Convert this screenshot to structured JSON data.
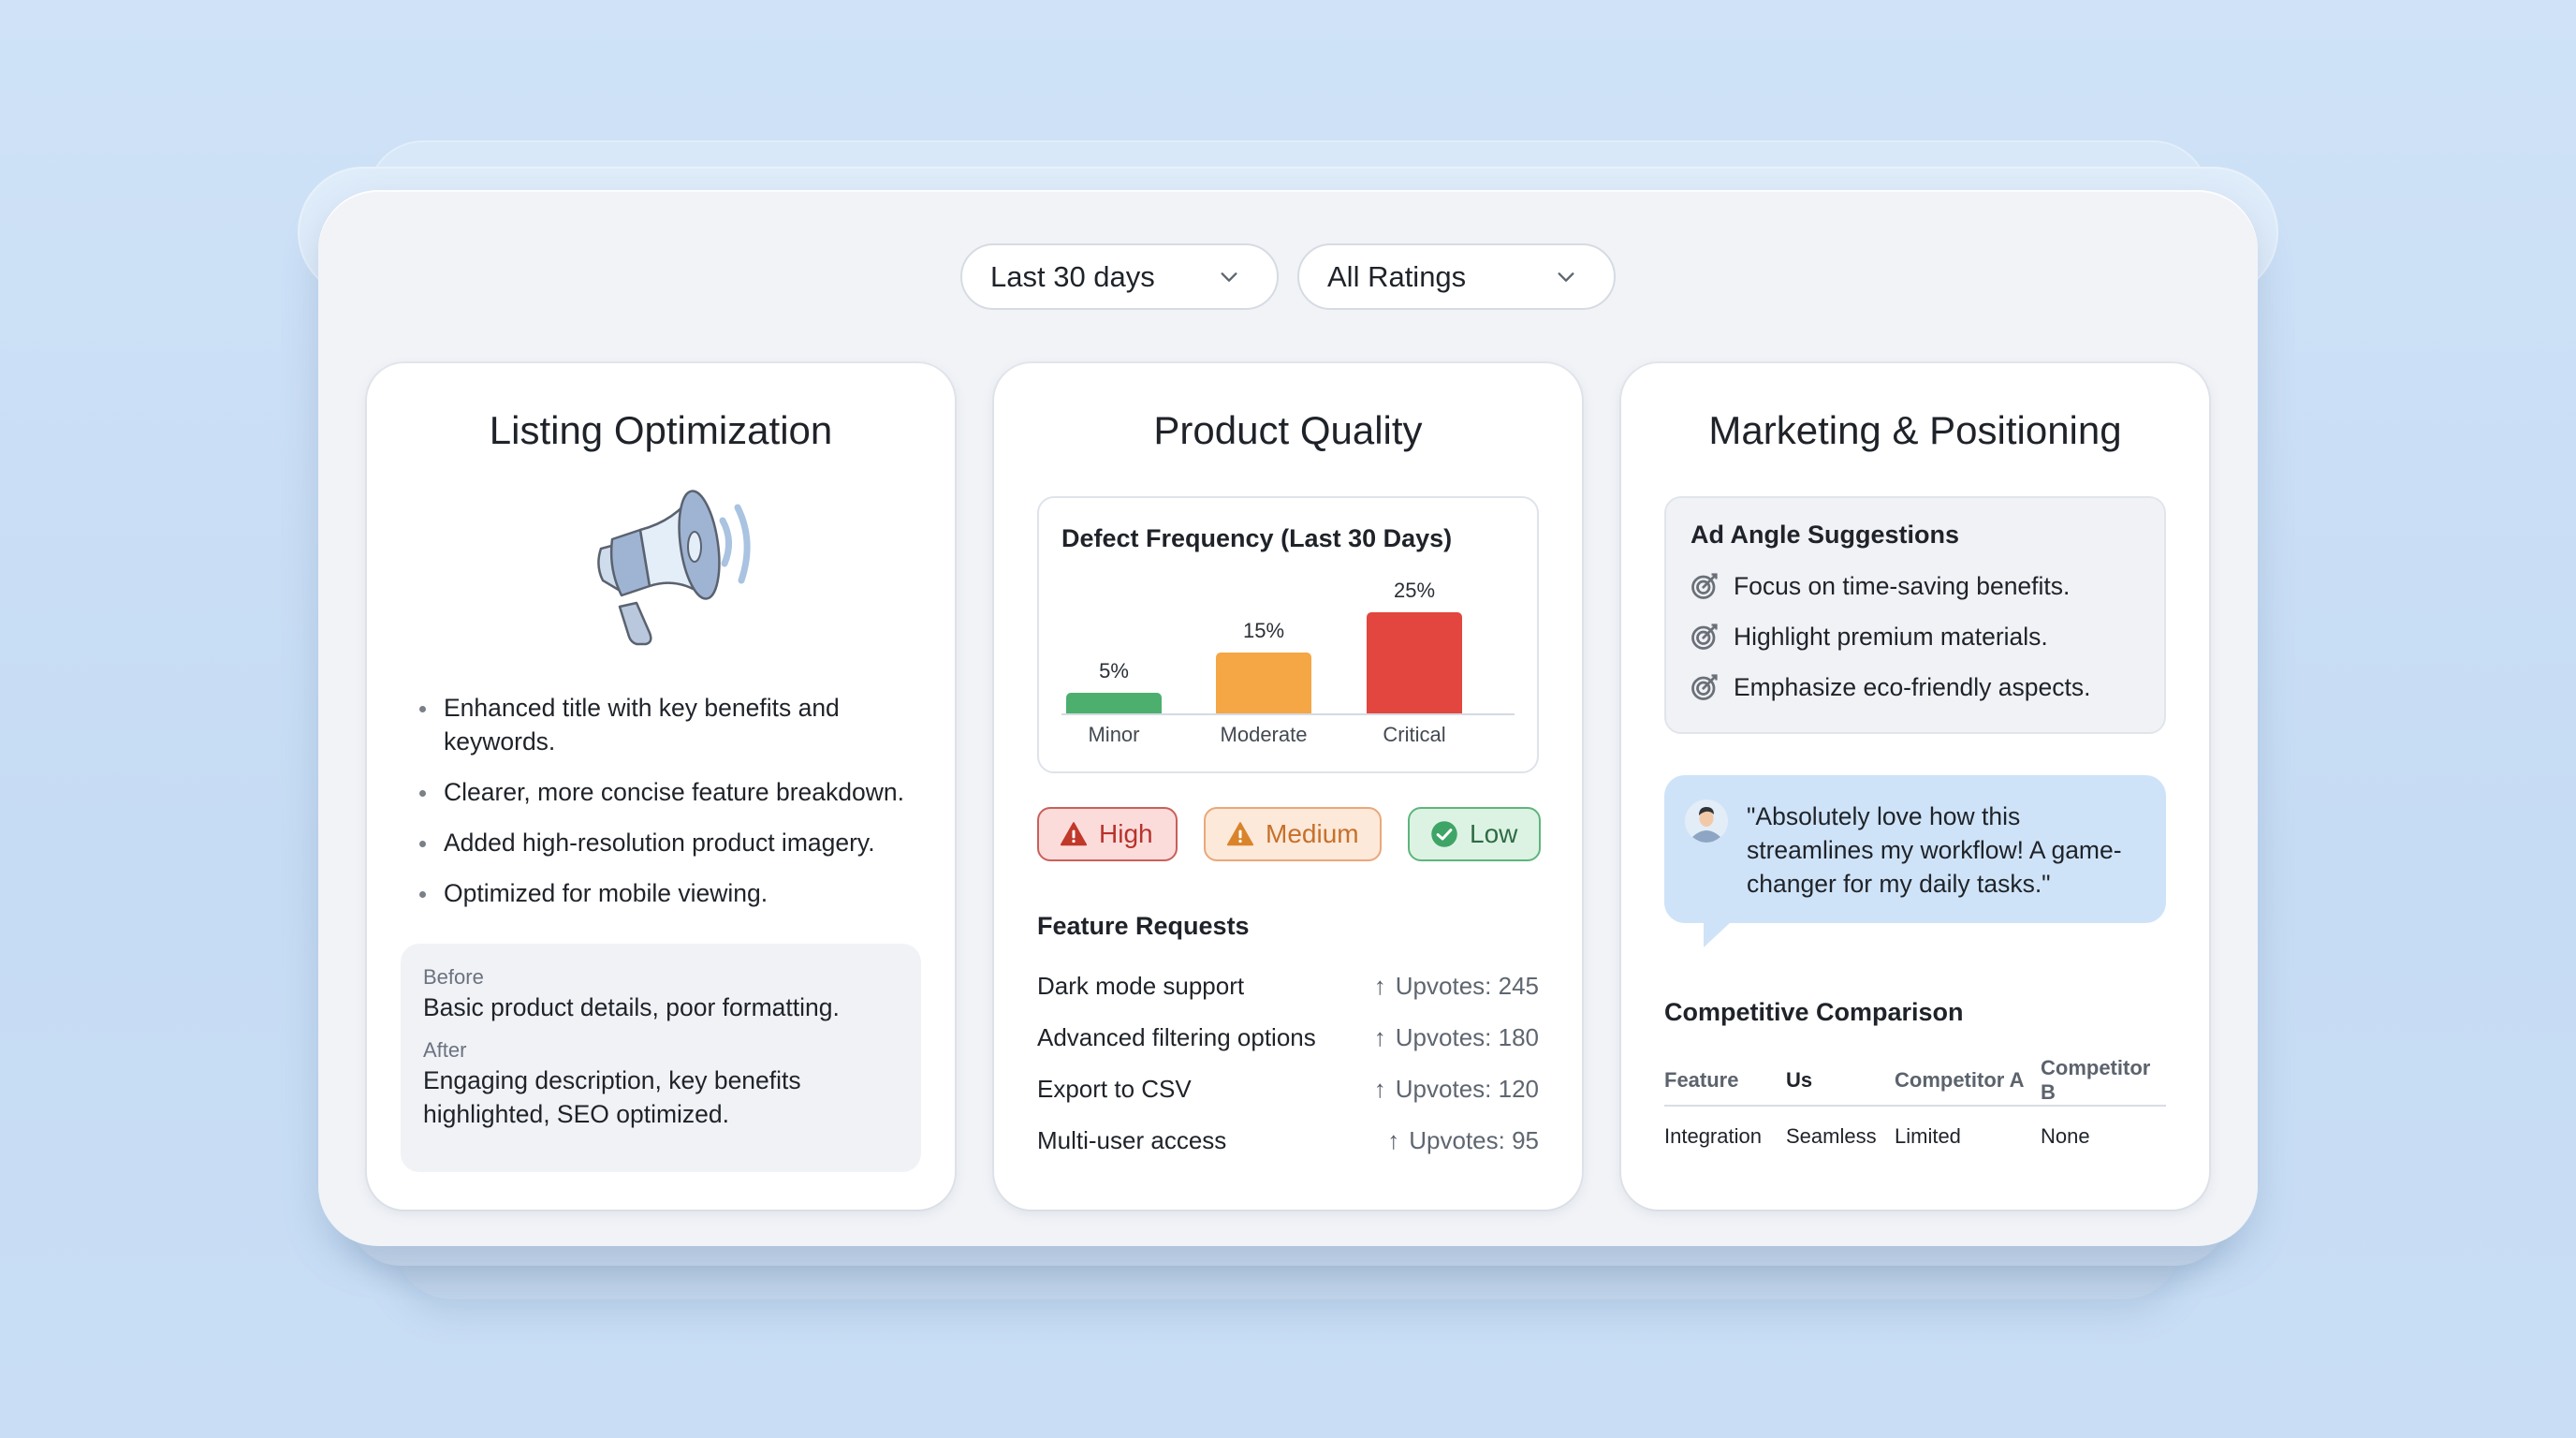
{
  "filters": {
    "date_range": {
      "selected": "Last 30 days",
      "icon": "chevron-down-icon"
    },
    "ratings": {
      "selected": "All Ratings",
      "icon": "chevron-down-icon"
    }
  },
  "listing_optimization": {
    "title": "Listing Optimization",
    "icon": "megaphone-icon",
    "bullets": [
      "Enhanced title with key benefits and keywords.",
      "Clearer, more concise feature breakdown.",
      "Added high-resolution product imagery.",
      "Optimized for mobile viewing."
    ],
    "before_label": "Before",
    "before_text": "Basic product details, poor formatting.",
    "after_label": "After",
    "after_text": "Engaging description, key benefits highlighted, SEO optimized."
  },
  "product_quality": {
    "title": "Product Quality",
    "chart_title": "Defect Frequency (Last 30 Days)",
    "bars": [
      {
        "category": "Minor",
        "label": "5%",
        "value": 5,
        "color": "#4caf6e"
      },
      {
        "category": "Moderate",
        "label": "15%",
        "value": 15,
        "color": "#f5a645"
      },
      {
        "category": "Critical",
        "label": "25%",
        "value": 25,
        "color": "#e2463f"
      }
    ],
    "severity_badges": [
      {
        "label": "High",
        "icon": "warning-icon",
        "color": "#b8322c"
      },
      {
        "label": "Medium",
        "icon": "warning-icon",
        "color": "#c7702a"
      },
      {
        "label": "Low",
        "icon": "check-circle-icon",
        "color": "#2f6b45"
      }
    ],
    "feature_requests_title": "Feature Requests",
    "feature_requests": [
      {
        "name": "Dark mode support",
        "votes": "Upvotes: 245"
      },
      {
        "name": "Advanced filtering options",
        "votes": "Upvotes: 180"
      },
      {
        "name": "Export to CSV",
        "votes": "Upvotes: 120"
      },
      {
        "name": "Multi-user access",
        "votes": "Upvotes: 95"
      }
    ],
    "upvote_icon": "↑"
  },
  "marketing": {
    "title": "Marketing & Positioning",
    "ad_angles_title": "Ad Angle Suggestions",
    "ad_angles": [
      "Focus on time-saving benefits.",
      "Highlight premium materials.",
      "Emphasize eco-friendly aspects."
    ],
    "testimonial": "\"Absolutely love how this streamlines my workflow! A game-changer for my daily tasks.\"",
    "comparison_title": "Competitive Comparison",
    "comparison_headers": [
      "Feature",
      "Us",
      "Competitor A",
      "Competitor B"
    ],
    "comparison_rows": [
      [
        "Integration",
        "Seamless",
        "Limited",
        "None"
      ]
    ]
  }
}
